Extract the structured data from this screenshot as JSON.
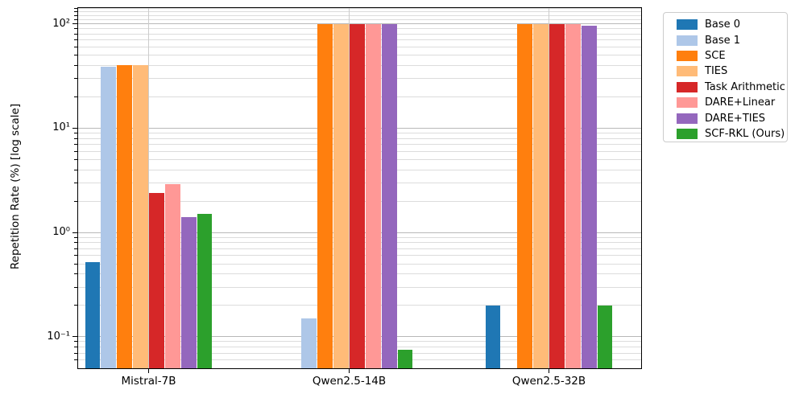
{
  "chart_data": {
    "type": "bar",
    "title": "",
    "ylabel": "Repetition Rate (%) [log scale]",
    "xlabel": "",
    "yscale": "log",
    "ylim": [
      0.05,
      142
    ],
    "grid": true,
    "legend_position": "outside-right",
    "categories": [
      "Mistral-7B",
      "Qwen2.5-14B",
      "Qwen2.5-32B"
    ],
    "series": [
      {
        "name": "Base 0",
        "color": "#1f77b4",
        "values": [
          0.52,
          null,
          0.2
        ]
      },
      {
        "name": "Base 1",
        "color": "#aec7e8",
        "values": [
          39,
          0.15,
          null
        ]
      },
      {
        "name": "SCE",
        "color": "#ff7f0e",
        "values": [
          40,
          100,
          100
        ]
      },
      {
        "name": "TIES",
        "color": "#ffbb78",
        "values": [
          40,
          100,
          100
        ]
      },
      {
        "name": "Task Arithmetic",
        "color": "#d62728",
        "values": [
          2.4,
          100,
          100
        ]
      },
      {
        "name": "DARE+Linear",
        "color": "#ff9896",
        "values": [
          2.9,
          100,
          100
        ]
      },
      {
        "name": "DARE+TIES",
        "color": "#9467bd",
        "values": [
          1.4,
          100,
          96
        ]
      },
      {
        "name": "SCF-RKL (Ours)",
        "color": "#2ca02c",
        "values": [
          1.5,
          0.075,
          0.2
        ]
      }
    ],
    "yticks": [
      {
        "value": 100,
        "label": "10²"
      },
      {
        "value": 10,
        "label": "10¹"
      },
      {
        "value": 1,
        "label": "10⁰"
      },
      {
        "value": 0.1,
        "label": "10⁻¹"
      }
    ],
    "minor_gridlines": [
      0.06,
      0.07,
      0.08,
      0.09,
      0.2,
      0.3,
      0.4,
      0.5,
      0.6,
      0.7,
      0.8,
      0.9,
      2,
      3,
      4,
      5,
      6,
      7,
      8,
      9,
      20,
      30,
      40,
      50,
      60,
      70,
      80,
      90,
      110,
      120,
      130,
      140
    ]
  },
  "colors": {
    "grid_minor": "#dcdcdc",
    "grid_major": "#b8b8b8",
    "grid_vertical": "#cccccc",
    "spine": "#000000",
    "background": "#ffffff"
  }
}
